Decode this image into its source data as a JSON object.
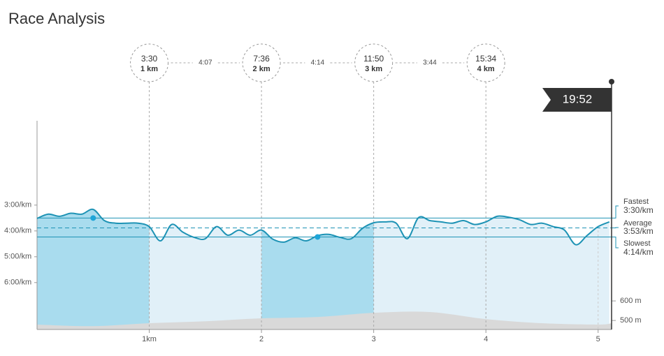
{
  "chart_data": {
    "type": "line",
    "title": "Race Analysis",
    "invert_y": true,
    "xlim": [
      0,
      5.12
    ],
    "xticks": [
      {
        "value": 1,
        "label": "1km"
      },
      2,
      3,
      4,
      5
    ],
    "ylim": [
      -16,
      469
    ],
    "yticks": [
      {
        "value": 180,
        "label": "3:00/km"
      },
      {
        "value": 240,
        "label": "4:00/km"
      },
      {
        "value": 300,
        "label": "5:00/km"
      },
      {
        "value": 360,
        "label": "6:00/km"
      }
    ],
    "y2lim": [
      454,
      1521
    ],
    "y2ticks": [
      {
        "value": 600,
        "label": "600 m"
      },
      {
        "value": 500,
        "label": "500 m"
      }
    ],
    "series": [
      {
        "color": "#1e93b5",
        "x": [
          0,
          0.1,
          0.2,
          0.3,
          0.4,
          0.5,
          0.6,
          0.7,
          0.8,
          0.9,
          1,
          1.1,
          1.2,
          1.3,
          1.4,
          1.5,
          1.6,
          1.7,
          1.8,
          1.9,
          2,
          2.1,
          2.2,
          2.3,
          2.4,
          2.5,
          2.6,
          2.7,
          2.8,
          2.9,
          3,
          3.1,
          3.2,
          3.3,
          3.4,
          3.5,
          3.6,
          3.7,
          3.8,
          3.9,
          4,
          4.1,
          4.2,
          4.3,
          4.4,
          4.5,
          4.6,
          4.7,
          4.8,
          4.9,
          5,
          5.1
        ],
        "values": [
          211,
          201,
          206,
          199,
          201,
          190,
          216,
          222,
          222,
          222,
          230,
          263,
          225,
          243,
          255,
          258,
          230,
          250,
          238,
          250,
          238,
          259,
          266,
          256,
          263,
          251,
          248,
          255,
          258,
          234,
          221,
          219,
          222,
          258,
          209,
          216,
          219,
          222,
          216,
          225,
          219,
          206,
          208,
          214,
          225,
          222,
          230,
          238,
          272,
          251,
          230,
          219
        ]
      },
      {
        "color": "#d9d9d9",
        "axis": "y2",
        "x": [
          0,
          0.5,
          1,
          1.5,
          2,
          2.5,
          3,
          3.5,
          4,
          4.5,
          5,
          5.12
        ],
        "values": [
          479,
          471,
          486,
          496,
          511,
          518,
          539,
          543,
          507,
          486,
          479,
          486
        ]
      }
    ],
    "band_colors": [
      "#a9dcee",
      "#e1f0f8"
    ],
    "reference_lines": [
      {
        "label": "Fastest",
        "value": 210,
        "value_label": "3:30/km",
        "color": "#1e93b5"
      },
      {
        "label": "Average",
        "value": 233,
        "value_label": "3:53/km",
        "color": "#1e93b5"
      },
      {
        "label": "Slowest",
        "value": 254,
        "value_label": "4:14/km",
        "color": "#1e93b5"
      }
    ],
    "markers": [
      {
        "x": 0.5,
        "value": 210
      },
      {
        "x": 2.5,
        "value": 254
      }
    ],
    "splits": [
      {
        "x": 1,
        "time": "3:30",
        "label": "1 km"
      },
      {
        "x": 2,
        "time": "7:36",
        "label": "2 km"
      },
      {
        "x": 3,
        "time": "11:50",
        "label": "3 km"
      },
      {
        "x": 4,
        "time": "15:34",
        "label": "4 km"
      }
    ],
    "split_paces": [
      "4:07",
      "4:14",
      "3:44"
    ],
    "finish": "19:52"
  }
}
